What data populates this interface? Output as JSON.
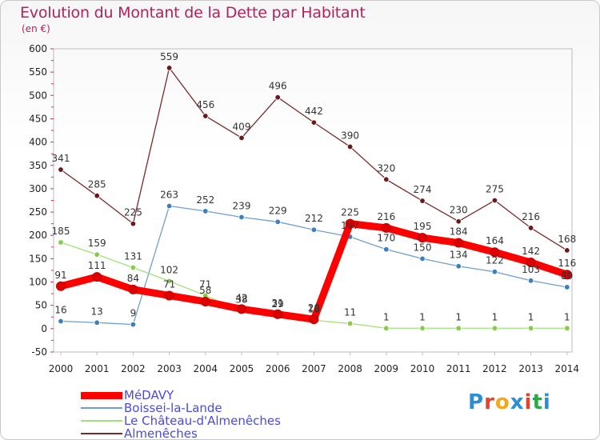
{
  "title": "Evolution du Montant de la Dette par Habitant",
  "subtitle": "(en €)",
  "brand": {
    "text": "Proxiti",
    "colors": [
      "#2b8fd6",
      "#e8402e",
      "#f0a81c",
      "#2b8fd6",
      "#e8402e",
      "#29a84a",
      "#2b8fd6"
    ]
  },
  "chart_data": {
    "type": "line",
    "title": "Evolution du Montant de la Dette par Habitant",
    "ylabel": "(en €)",
    "ylim": [
      -50,
      600
    ],
    "yticks": [
      "-50",
      "0",
      "50",
      "100",
      "150",
      "200",
      "250",
      "300",
      "350",
      "400",
      "450",
      "500",
      "550",
      "600"
    ],
    "x": [
      "2000",
      "2001",
      "2002",
      "2003",
      "2004",
      "2005",
      "2006",
      "2007",
      "2008",
      "2009",
      "2010",
      "2011",
      "2012",
      "2013",
      "2014"
    ],
    "legend_position": "bottom-left",
    "series": [
      {
        "name": "MéDAVY",
        "color": "#ff0000",
        "marker_color": "#dd0000",
        "thick": true,
        "values": [
          91,
          111,
          84,
          71,
          58,
          42,
          31,
          20,
          225,
          216,
          195,
          184,
          164,
          142,
          116
        ],
        "labels": [
          "91",
          "111",
          "84",
          "71",
          "58",
          "42",
          "31",
          "20",
          "225",
          "216",
          "195",
          "184",
          "164",
          "142",
          "116"
        ]
      },
      {
        "name": "Boissei-la-Lande",
        "color": "#6e9fd0",
        "marker_color": "#3a7fc0",
        "thick": false,
        "values": [
          16,
          13,
          9,
          263,
          252,
          239,
          229,
          212,
          197,
          170,
          150,
          134,
          122,
          103,
          89
        ],
        "labels": [
          "16",
          "13",
          "9",
          "263",
          "252",
          "239",
          "229",
          "212",
          "197",
          "170",
          "150",
          "134",
          "122",
          "103",
          "89"
        ]
      },
      {
        "name": "Le Château-d'Almenêches",
        "color": "#a3e07a",
        "marker_color": "#86cc4a",
        "thick": false,
        "values": [
          185,
          159,
          131,
          102,
          71,
          38,
          29,
          18,
          11,
          1,
          1,
          1,
          1,
          1,
          1
        ],
        "labels": [
          "185",
          "159",
          "131",
          "102",
          "71",
          "38",
          "29",
          "18",
          "11",
          "1",
          "1",
          "1",
          "1",
          "1",
          "1"
        ]
      },
      {
        "name": "Almenêches",
        "color": "#7b2a2a",
        "marker_color": "#6a1a1a",
        "thick": false,
        "values": [
          341,
          285,
          225,
          559,
          456,
          409,
          496,
          442,
          390,
          320,
          274,
          230,
          275,
          216,
          168
        ],
        "labels": [
          "341",
          "285",
          "225",
          "559",
          "456",
          "409",
          "496",
          "442",
          "390",
          "320",
          "274",
          "230",
          "275",
          "216",
          "168"
        ]
      }
    ]
  }
}
